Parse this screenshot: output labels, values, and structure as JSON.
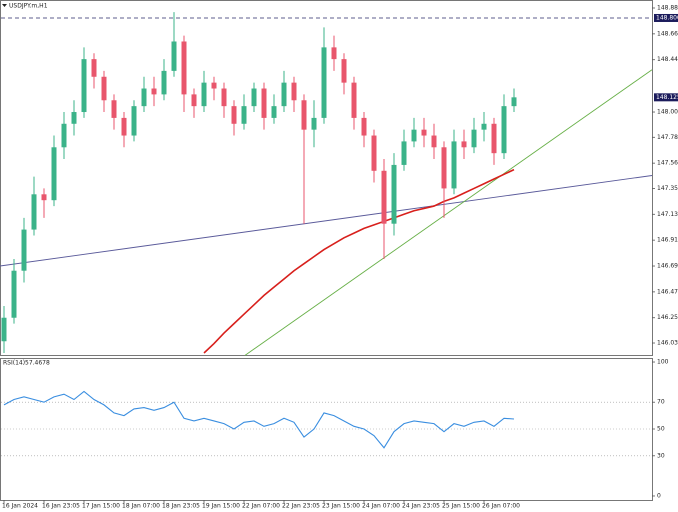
{
  "chart_data": [
    {
      "type": "candlestick",
      "title": "USDJPY.m,H1",
      "categories": [
        "16 Jan 2024",
        null,
        null,
        null,
        "16 Jan 23:05",
        null,
        null,
        null,
        "17 Jan 15:00",
        null,
        null,
        null,
        "18 Jan 07:00",
        null,
        null,
        null,
        "18 Jan 23:05",
        null,
        null,
        null,
        "19 Jan 15:00",
        null,
        null,
        null,
        "22 Jan 07:00",
        null,
        null,
        null,
        "22 Jan 23:05",
        null,
        null,
        null,
        "23 Jan 15:00",
        null,
        null,
        null,
        "24 Jan 07:00",
        null,
        null,
        null,
        "24 Jan 23:05",
        null,
        null,
        null,
        "25 Jan 15:00",
        null,
        null,
        null,
        "26 Jan 07:00",
        null,
        null,
        null
      ],
      "open": [
        146.05,
        146.25,
        146.65,
        147.0,
        147.3,
        147.25,
        147.7,
        147.9,
        148.0,
        148.45,
        148.3,
        148.1,
        147.95,
        147.8,
        148.05,
        148.2,
        148.15,
        148.35,
        148.6,
        148.15,
        148.05,
        148.25,
        148.2,
        148.05,
        147.9,
        148.05,
        148.2,
        147.95,
        148.05,
        148.25,
        148.1,
        147.85,
        147.95,
        148.55,
        148.45,
        148.25,
        147.95,
        147.8,
        147.5,
        147.05,
        147.55,
        147.75,
        147.85,
        147.8,
        147.7,
        147.35,
        147.75,
        147.7,
        147.85,
        147.9,
        147.65,
        148.05
      ],
      "high": [
        146.35,
        146.75,
        147.1,
        147.45,
        147.35,
        147.8,
        148.0,
        148.1,
        148.55,
        148.5,
        148.35,
        148.15,
        148.0,
        148.1,
        148.3,
        148.3,
        148.45,
        148.85,
        148.65,
        148.2,
        148.35,
        148.3,
        148.25,
        148.1,
        148.15,
        148.25,
        148.25,
        148.15,
        148.35,
        148.3,
        148.15,
        148.1,
        148.72,
        148.65,
        148.5,
        148.3,
        148.0,
        147.85,
        147.6,
        147.65,
        147.85,
        147.95,
        147.95,
        147.9,
        147.75,
        147.85,
        147.85,
        147.95,
        148.0,
        147.95,
        148.15,
        148.2
      ],
      "low": [
        145.95,
        146.2,
        146.55,
        146.95,
        147.1,
        147.2,
        147.6,
        147.8,
        147.95,
        148.2,
        148.0,
        147.85,
        147.7,
        147.75,
        148.0,
        148.05,
        148.1,
        148.3,
        148.0,
        147.95,
        148.0,
        148.1,
        147.95,
        147.8,
        147.85,
        148.0,
        147.85,
        147.9,
        148.0,
        148.0,
        147.05,
        147.7,
        147.9,
        148.35,
        148.15,
        147.85,
        147.7,
        147.4,
        146.75,
        146.95,
        147.5,
        147.7,
        147.7,
        147.6,
        147.1,
        147.3,
        147.6,
        147.65,
        147.75,
        147.55,
        147.6,
        148.0
      ],
      "close": [
        146.25,
        146.65,
        147.0,
        147.3,
        147.25,
        147.7,
        147.9,
        148.0,
        148.45,
        148.3,
        148.1,
        147.95,
        147.8,
        148.05,
        148.2,
        148.15,
        148.35,
        148.6,
        148.15,
        148.05,
        148.25,
        148.2,
        148.05,
        147.9,
        148.05,
        148.2,
        147.95,
        148.05,
        148.25,
        148.1,
        147.85,
        147.95,
        148.55,
        148.45,
        148.25,
        147.95,
        147.8,
        147.5,
        147.05,
        147.55,
        147.75,
        147.85,
        147.8,
        147.7,
        147.35,
        147.75,
        147.7,
        147.85,
        147.9,
        147.65,
        148.05,
        148.125
      ],
      "up_color": "#3bb389",
      "down_color": "#e8566c",
      "ylim": [
        145.933,
        148.953
      ],
      "yticks": [
        146.035,
        {
          "value": 146.25,
          "label": "146.250"
        },
        {
          "value": 146.47,
          "label": "146.470"
        },
        {
          "value": 146.69,
          "label": "146.690"
        },
        {
          "value": 146.91,
          "label": "146.910"
        },
        {
          "value": 147.13,
          "label": "147.130"
        },
        {
          "value": 147.35,
          "label": "147.350"
        },
        147.565,
        147.785,
        {
          "value": 148,
          "label": "148.000"
        },
        148.445,
        148.665,
        148.885
      ],
      "overlays": [
        {
          "type": "line",
          "color": "#d8201c",
          "values": [
            null,
            null,
            null,
            null,
            null,
            null,
            null,
            null,
            null,
            null,
            null,
            null,
            null,
            null,
            null,
            null,
            null,
            null,
            null,
            null,
            145.95,
            146.03,
            146.12,
            146.2,
            146.28,
            146.36,
            146.44,
            146.51,
            146.58,
            146.65,
            146.71,
            146.77,
            146.83,
            146.88,
            146.93,
            146.97,
            147.01,
            147.04,
            147.07,
            147.1,
            147.13,
            147.16,
            147.18,
            147.2,
            147.24,
            147.27,
            147.31,
            147.35,
            147.39,
            147.43,
            147.47,
            147.51
          ]
        }
      ],
      "trendlines": [
        {
          "color": "#5a5a9a",
          "x": [
            -0.4,
            64.8
          ],
          "y": [
            146.69,
            147.46
          ]
        },
        {
          "color": "#68b048",
          "x": [
            24.1,
            64.8
          ],
          "y": [
            145.93,
            148.36
          ]
        }
      ],
      "level_lines": [
        {
          "value": 148.8,
          "label": "148.800"
        }
      ],
      "last_price": {
        "value": 148.125,
        "label": "148.125"
      }
    },
    {
      "type": "line",
      "name": "RSI(14)",
      "color": "#3a8ee0",
      "values": [
        68,
        72,
        74,
        72,
        70,
        74,
        76,
        72,
        78,
        72,
        68,
        62,
        60,
        65,
        66,
        64,
        66,
        70,
        58,
        56,
        58,
        56,
        54,
        50,
        55,
        56,
        52,
        54,
        58,
        55,
        44,
        50,
        62,
        60,
        56,
        52,
        50,
        45,
        36,
        48,
        54,
        56,
        55,
        54,
        48,
        54,
        52,
        55,
        56,
        52,
        58,
        57.4678
      ],
      "ylim": [
        -3,
        103
      ],
      "yticks": [
        0,
        30,
        50,
        70,
        100
      ],
      "levels": [
        30,
        50,
        70
      ]
    }
  ]
}
